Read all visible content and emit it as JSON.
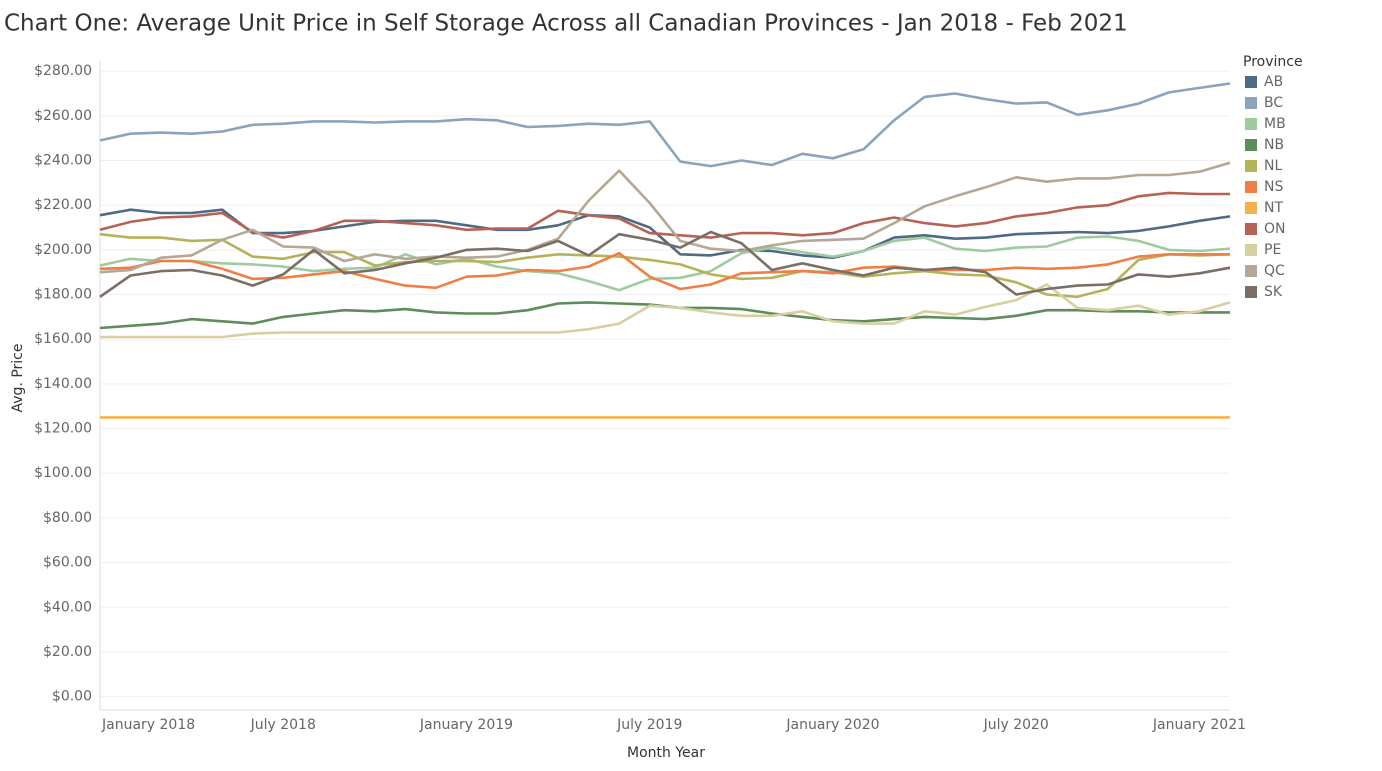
{
  "chart_data": {
    "type": "line",
    "title": "Chart One: Average Unit Price in Self Storage Across all Canadian Provinces - Jan 2018 - Feb 2021",
    "x_label": "Month Year",
    "y_label": "Avg. Price",
    "legend_title": "Province",
    "legend": "right",
    "grid": true,
    "categories": [
      "January 2018",
      null,
      null,
      null,
      null,
      null,
      "July 2018",
      null,
      null,
      null,
      null,
      null,
      "January 2019",
      null,
      null,
      null,
      null,
      null,
      "July 2019",
      null,
      null,
      null,
      null,
      null,
      "January 2020",
      null,
      null,
      null,
      null,
      null,
      "July 2020",
      null,
      null,
      null,
      null,
      null,
      "January 2021",
      null
    ],
    "ylim": [
      -6,
      285
    ],
    "yticks": [
      {
        "value": 0,
        "label": "$0.00"
      },
      {
        "value": 20,
        "label": "$20.00"
      },
      {
        "value": 40,
        "label": "$40.00"
      },
      {
        "value": 60,
        "label": "$60.00"
      },
      {
        "value": 80,
        "label": "$80.00"
      },
      {
        "value": 100,
        "label": "$100.00"
      },
      {
        "value": 120,
        "label": "$120.00"
      },
      {
        "value": 140,
        "label": "$140.00"
      },
      {
        "value": 160,
        "label": "$160.00"
      },
      {
        "value": 180,
        "label": "$180.00"
      },
      {
        "value": 200,
        "label": "$200.00"
      },
      {
        "value": 220,
        "label": "$220.00"
      },
      {
        "value": 240,
        "label": "$240.00"
      },
      {
        "value": 260,
        "label": "$260.00"
      },
      {
        "value": 280,
        "label": "$280.00"
      }
    ],
    "series": [
      {
        "name": "AB",
        "color": "#4e6a85",
        "values": [
          215.5,
          218,
          216.5,
          216.5,
          218,
          207.5,
          207.5,
          208.5,
          210.5,
          212.5,
          213,
          213,
          211,
          209,
          209,
          211,
          215.5,
          215,
          210,
          198,
          197.5,
          200,
          199.5,
          197.5,
          196.5,
          199.5,
          205.5,
          206.5,
          205,
          205.5,
          207,
          207.5,
          208,
          207.5,
          208.5,
          210.5,
          213,
          215
        ]
      },
      {
        "name": "BC",
        "color": "#8ba3bb",
        "values": [
          249,
          252,
          252.5,
          252,
          253,
          256,
          256.5,
          257.5,
          257.5,
          257,
          257.5,
          257.5,
          258.5,
          258,
          255,
          255.5,
          256.5,
          256,
          257.5,
          239.5,
          237.5,
          240,
          238,
          243,
          241,
          245,
          258,
          268.5,
          270,
          267.5,
          265.5,
          266,
          260.5,
          262.5,
          265.5,
          270.5,
          272.5,
          274.5
        ]
      },
      {
        "name": "MB",
        "color": "#9fcb9f",
        "values": [
          193,
          196,
          195,
          195,
          194,
          193.5,
          192.5,
          190.5,
          191.5,
          192,
          198,
          193.5,
          196,
          192.5,
          190.5,
          189.5,
          186,
          182,
          187,
          187.5,
          190.5,
          198.5,
          201,
          199,
          197,
          199.5,
          204,
          205.5,
          200.5,
          199.5,
          201,
          201.5,
          205.5,
          206,
          204,
          200,
          199.5,
          200.5
        ]
      },
      {
        "name": "NB",
        "color": "#5f8c5b",
        "values": [
          165,
          166,
          167,
          169,
          168,
          167,
          170,
          171.5,
          173,
          172.5,
          173.5,
          172,
          171.5,
          171.5,
          173,
          176,
          176.5,
          176,
          175.5,
          174,
          174,
          173.5,
          171.5,
          170,
          168.5,
          168,
          169,
          170,
          169.5,
          169,
          170.5,
          173,
          173,
          172.5,
          172.5,
          172,
          172,
          172
        ]
      },
      {
        "name": "NL",
        "color": "#b5b35a",
        "values": [
          207,
          205.5,
          205.5,
          204,
          204.5,
          197,
          196,
          199,
          199,
          193,
          194.5,
          195,
          195,
          194.5,
          196.5,
          198,
          197.5,
          197,
          195.5,
          193.5,
          189,
          187,
          187.5,
          190.5,
          190,
          188,
          189.5,
          190.5,
          189,
          188.5,
          185.5,
          180,
          179,
          182.5,
          195.5,
          198,
          197.5,
          198
        ]
      },
      {
        "name": "NS",
        "color": "#f07f45",
        "values": [
          191.5,
          192,
          195,
          195,
          191.5,
          187,
          187.5,
          189,
          190.5,
          187,
          184,
          183,
          188,
          188.5,
          191,
          190.5,
          192.5,
          198.5,
          188,
          182.5,
          184.5,
          189.5,
          190,
          190.5,
          189.5,
          192,
          192.5,
          191,
          191,
          191,
          192,
          191.5,
          192,
          193.5,
          197,
          198,
          198,
          198
        ]
      },
      {
        "name": "NT",
        "color": "#f8b04a",
        "values": [
          125,
          125,
          125,
          125,
          125,
          125,
          125,
          125,
          125,
          125,
          125,
          125,
          125,
          125,
          125,
          125,
          125,
          125,
          125,
          125,
          125,
          125,
          125,
          125,
          125,
          125,
          125,
          125,
          125,
          125,
          125,
          125,
          125,
          125,
          125,
          125,
          125,
          125
        ]
      },
      {
        "name": "ON",
        "color": "#b86253",
        "values": [
          209,
          212.5,
          214.5,
          215,
          216.5,
          208,
          205.5,
          208.5,
          213,
          213,
          212,
          211,
          209,
          209.5,
          209.5,
          217.5,
          215.5,
          214,
          207.5,
          206.5,
          205.5,
          207.5,
          207.5,
          206.5,
          207.5,
          212,
          214.5,
          212,
          210.5,
          212,
          215,
          216.5,
          219,
          220,
          224,
          225.5,
          225,
          225
        ]
      },
      {
        "name": "PE",
        "color": "#d8cfa0",
        "values": [
          161,
          161,
          161,
          161,
          161,
          162.5,
          163,
          163,
          163,
          163,
          163,
          163,
          163,
          163,
          163,
          163,
          164.5,
          167,
          175,
          174,
          172,
          170.5,
          170.5,
          172.5,
          168,
          167,
          167,
          172.5,
          171,
          174.5,
          177.5,
          184.5,
          174,
          173,
          175,
          171,
          172.5,
          176.5
        ]
      },
      {
        "name": "QC",
        "color": "#b5a795",
        "values": [
          190,
          191,
          196.5,
          197.5,
          204.5,
          209,
          201.5,
          201,
          195,
          198,
          196,
          197,
          196.5,
          197,
          200,
          205,
          222,
          235.5,
          221,
          204,
          200.5,
          199.5,
          202,
          204,
          204.5,
          205,
          212,
          219.5,
          224,
          228,
          232.5,
          230.5,
          232,
          232,
          233.5,
          233.5,
          235,
          239
        ]
      },
      {
        "name": "SK",
        "color": "#7b6e66",
        "values": [
          179,
          188.5,
          190.5,
          191,
          188.5,
          184,
          189,
          200,
          189.5,
          191,
          194,
          196.5,
          200,
          200.5,
          199.5,
          204,
          197.5,
          207,
          204.5,
          201,
          208,
          203,
          191,
          194,
          191,
          188.5,
          192,
          191,
          192,
          190,
          180,
          182.5,
          184,
          184.5,
          189,
          188,
          189.5,
          192
        ]
      }
    ]
  }
}
